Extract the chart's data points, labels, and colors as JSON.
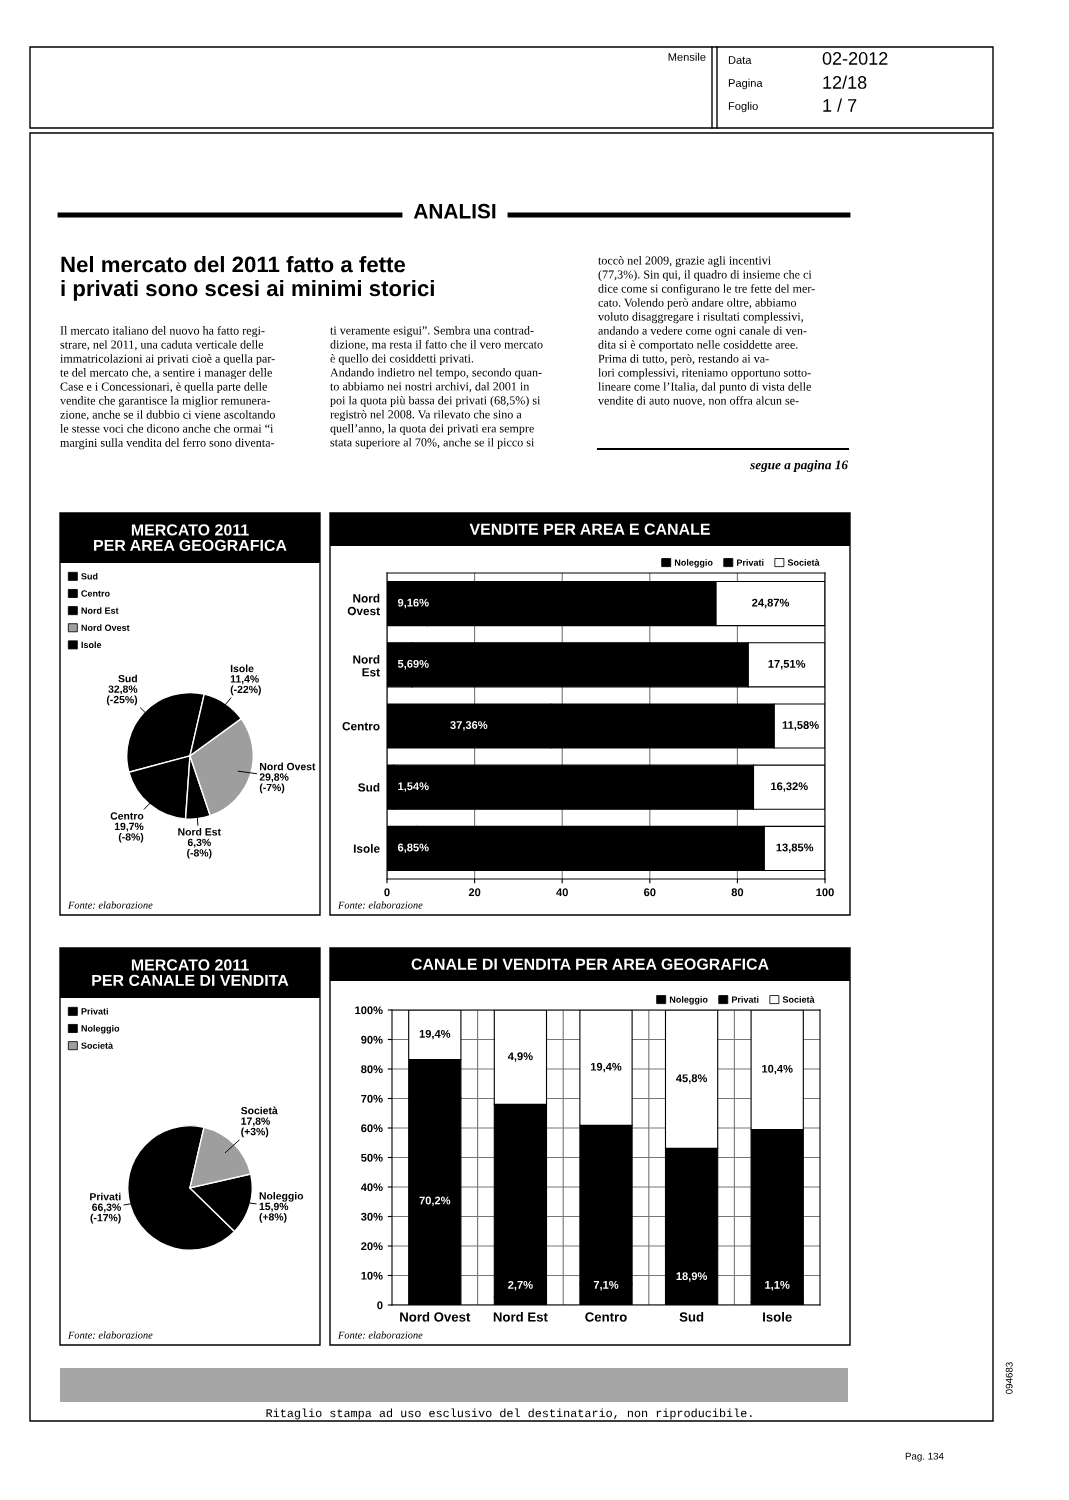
{
  "chart_data": [
    {
      "type": "other",
      "title": "Nel mercato del 2011 fatto a fette\ni privati sono scesi ai minimi storici",
      "annotations": [
        "Mensile",
        "Data",
        "02-2012",
        "Pagina",
        "12/18",
        "Foglio",
        "1 / 7",
        "ANALISI",
        "Il mercato italiano del nuovo ha fatto regi-\nstrare, nel 2011, una caduta verticale delle\nimmatricolazioni ai privati cioè a quella par-\nte del mercato che, a sentire i manager delle\nCase e i Concessionari, è quella parte delle\nvendite che garantisce la miglior remunera-\nzione, anche se il dubbio ci viene ascoltando\nle stesse voci che dicono anche che ormai “i\nmargini sulla vendita del ferro sono diventa-",
        "ti veramente esigui”. Sembra una contrad-\ndizione, ma resta il fatto che il vero mercato\nè quello dei cosiddetti privati.\nAndando indietro nel tempo, secondo quan-\nto abbiamo nei nostri archivi, dal 2001 in\npoi la quota più bassa dei privati (68,5%) si\nregistrò nel 2008. Va rilevato che sino a\nquell’anno, la quota dei privati era sempre\nstata superiore al 70%, anche se il picco si",
        "toccò nel 2009, grazie agli incentivi\n(77,3%). Sin qui, il quadro di insieme che ci\ndice come si configurano le tre fette del mer-\ncato. Volendo però andare oltre, abbiamo\nvoluto disaggregare i risultati complessivi,\nandando a vedere come ogni canale di ven-\ndita si è comportato nelle cosiddette aree.\nPrima di tutto, però, restando ai va-\nlori complessivi, riteniamo opportuno sotto-\nlineare come l’Italia, dal punto di vista delle\nvendite di auto nuove, non offra alcun se-",
        "segue a pagina 16",
        "Ritaglio stampa ad uso esclusivo del destinatario, non riproducibile.",
        "094683",
        "Pag. 134"
      ]
    },
    {
      "type": "pie",
      "title": "MERCATO 2011\nPER AREA GEOGRAFICA",
      "categories": [
        "Sud",
        "Centro",
        "Nord Est",
        "Nord Ovest",
        "Isole"
      ],
      "values": [
        32.8,
        19.7,
        6.3,
        29.8,
        11.4
      ],
      "colors": [
        "#000000",
        "#000000",
        "#000000",
        "#9e9e9e",
        "#000000"
      ],
      "value_labels": [
        "32,8%\n(-25%)",
        "19,7%\n(-8%)",
        "6,3%\n(-8%)",
        "29,8%\n(-7%)",
        "11,4%\n(-22%)"
      ],
      "legend": "top left",
      "annotations": [
        "Fonte: elaborazione"
      ]
    },
    {
      "type": "bar",
      "orientation": "horizontal",
      "stacked": true,
      "title": "VENDITE PER AREA E CANALE",
      "categories": [
        "Nord Ovest",
        "Nord Est",
        "Centro",
        "Sud",
        "Isole"
      ],
      "series": [
        {
          "name": "Noleggio",
          "color": "#000000",
          "values": [
            9.16,
            5.69,
            37.36,
            1.54,
            6.85
          ],
          "value_labels": [
            "9,16%",
            "5,69%",
            "37,36%",
            "1,54%",
            "6,85%"
          ]
        },
        {
          "name": "Privati",
          "color": "#000000",
          "values": [
            65.97,
            76.8,
            51.06,
            82.14,
            79.3
          ]
        },
        {
          "name": "Società",
          "color": "#ffffff",
          "values": [
            24.87,
            17.51,
            11.58,
            16.32,
            13.85
          ],
          "value_labels": [
            "24,87%",
            "17,51%",
            "11,58%",
            "16,32%",
            "13,85%"
          ]
        }
      ],
      "xlim": [
        0,
        100
      ],
      "xticks": [
        0,
        20,
        40,
        60,
        80,
        100
      ],
      "grid": "x",
      "legend": "top right",
      "annotations": [
        "Fonte: elaborazione"
      ]
    },
    {
      "type": "pie",
      "title": "MERCATO 2011\nPER CANALE DI VENDITA",
      "categories": [
        "Privati",
        "Noleggio",
        "Società"
      ],
      "values": [
        66.3,
        15.9,
        17.8
      ],
      "colors": [
        "#000000",
        "#000000",
        "#9e9e9e"
      ],
      "value_labels": [
        "66,3%\n(-17%)",
        "15,9%\n(+8%)",
        "17,8%\n(+3%)"
      ],
      "legend": "top left",
      "annotations": [
        "Fonte: elaborazione"
      ]
    },
    {
      "type": "bar",
      "stacked": true,
      "title": "CANALE DI VENDITA PER AREA GEOGRAFICA",
      "categories": [
        "Nord Ovest",
        "Nord Est",
        "Centro",
        "Sud",
        "Isole"
      ],
      "series": [
        {
          "name": "Noleggio",
          "color": "#000000",
          "values": [
            70.2,
            2.7,
            7.1,
            18.9,
            1.1
          ],
          "value_labels": [
            "70,2%",
            "2,7%",
            "7,1%",
            "18,9%",
            "1,1%"
          ]
        },
        {
          "name": "Privati",
          "color": "#000000",
          "values": [
            13.0,
            65.3,
            53.8,
            34.2,
            58.4
          ]
        },
        {
          "name": "Società",
          "color": "#ffffff",
          "values": [
            16.8,
            32.0,
            39.1,
            46.9,
            40.5
          ]
        }
      ],
      "ylim": [
        0,
        100
      ],
      "yticks": [
        0,
        {
          "value": 10,
          "label": "10%"
        },
        {
          "value": 20,
          "label": "20%"
        },
        {
          "value": 30,
          "label": "30%"
        },
        {
          "value": 40,
          "label": "40%"
        },
        {
          "value": 50,
          "label": "50%"
        },
        {
          "value": 60,
          "label": "60%"
        },
        {
          "value": 70,
          "label": "70%"
        },
        {
          "value": 80,
          "label": "80%"
        },
        {
          "value": 90,
          "label": "90%"
        },
        {
          "value": 100,
          "label": "100%"
        }
      ],
      "grid": true,
      "legend": "top right",
      "annotations": [
        "19,4%",
        "4,9%",
        "19,4%",
        "45,8%",
        "10,4%",
        "Fonte: elaborazione"
      ]
    }
  ]
}
